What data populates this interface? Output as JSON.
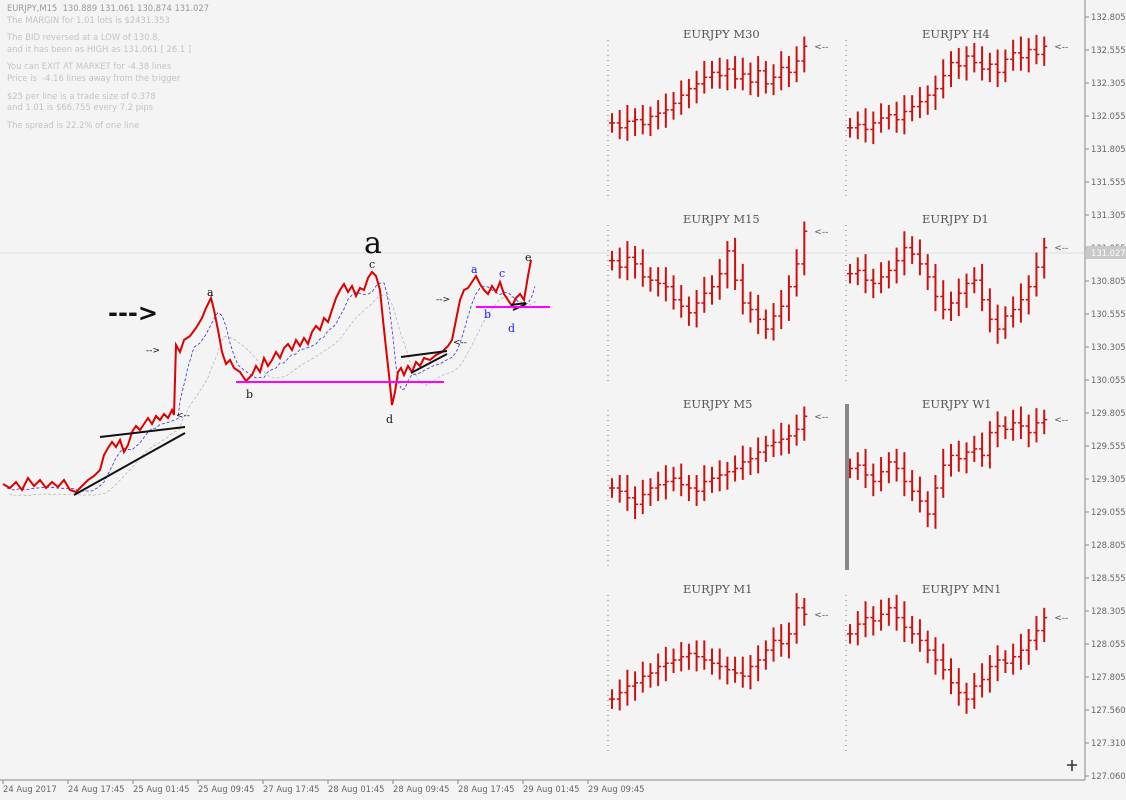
{
  "header": {
    "symbol_line": "EURJPY,M15  130.889 131.061 130.874 131.027",
    "info_lines": [
      "The MARGIN for 1.01 lots is $2431.353",
      "",
      "The BID reversed at a LOW of 130.8,",
      "and it has been as HIGH as 131.061 [ 26.1 ]",
      "",
      "You can EXIT AT MARKET for -4.38 lines",
      "Price is  -4.16 lines away from the trigger",
      "",
      "$25 per line is a trade size of 0.378",
      "and 1.01 is $66.755 every 7.2 pips",
      "",
      "The spread is 22.2% of one line"
    ]
  },
  "annotations": {
    "big_label": "a",
    "arrow_text": "--->",
    "wave_labels_black": [
      "a",
      "b",
      "c",
      "d",
      "e"
    ],
    "wave_labels_blue": [
      "a",
      "b",
      "c",
      "d"
    ]
  },
  "colors": {
    "price_line": "#dd0000",
    "support_line": "#ff00ff",
    "ma_line": "#3333cc",
    "panel_bars": "#cc1111",
    "axis_text": "#666666",
    "current_price_bg": "#c8c8c8"
  },
  "chart_data": [
    {
      "type": "line",
      "title": "EURJPY,M15",
      "x_tick_labels": [
        "24 Aug 2017",
        "24 Aug 17:45",
        "25 Aug 01:45",
        "25 Aug 09:45",
        "27 Aug 17:45",
        "28 Aug 01:45",
        "28 Aug 09:45",
        "28 Aug 17:45",
        "29 Aug 01:45",
        "29 Aug 09:45"
      ],
      "y_tick_labels": [
        "132.805",
        "132.555",
        "132.305",
        "132.055",
        "131.805",
        "131.555",
        "131.305",
        "131.055",
        "130.805",
        "130.555",
        "130.305",
        "130.055",
        "129.805",
        "129.555",
        "129.305",
        "129.055",
        "128.805",
        "128.555",
        "128.305",
        "128.055",
        "127.805",
        "127.560",
        "127.310",
        "127.060"
      ],
      "current_price": "131.027",
      "ylim": [
        127.06,
        132.805
      ]
    },
    {
      "type": "bar",
      "note": "OHLC mini panels of EURJPY on multiple timeframes",
      "panels": [
        {
          "title": "EURJPY M30",
          "closes": [
            43,
            40,
            44,
            45,
            42,
            47,
            49,
            51,
            55,
            60,
            64,
            67,
            71,
            74,
            72,
            76,
            70,
            73,
            68,
            75,
            67,
            71,
            77,
            74,
            81,
            90
          ]
        },
        {
          "title": "EURJPY H4",
          "closes": [
            40,
            42,
            39,
            43,
            46,
            48,
            45,
            50,
            53,
            56,
            60,
            64,
            72,
            80,
            78,
            84,
            80,
            76,
            79,
            74,
            82,
            86,
            83,
            88,
            85,
            90
          ]
        },
        {
          "title": "EURJPY M15",
          "closes": [
            72,
            68,
            74,
            70,
            62,
            60,
            58,
            56,
            48,
            44,
            40,
            46,
            52,
            56,
            64,
            78,
            60,
            46,
            42,
            36,
            30,
            38,
            44,
            56,
            70,
            90
          ]
        },
        {
          "title": "EURJPY D1",
          "closes": [
            64,
            66,
            60,
            58,
            62,
            66,
            72,
            80,
            76,
            70,
            62,
            50,
            42,
            46,
            52,
            58,
            60,
            48,
            36,
            30,
            38,
            42,
            48,
            56,
            68,
            80
          ]
        },
        {
          "title": "EURJPY M5",
          "closes": [
            46,
            44,
            40,
            36,
            42,
            46,
            48,
            50,
            52,
            48,
            46,
            44,
            50,
            52,
            54,
            56,
            58,
            62,
            64,
            68,
            72,
            74,
            76,
            78,
            82,
            90
          ]
        },
        {
          "title": "EURJPY W1",
          "closes": [
            58,
            60,
            54,
            50,
            56,
            62,
            58,
            50,
            44,
            38,
            30,
            46,
            60,
            66,
            64,
            68,
            70,
            66,
            80,
            84,
            82,
            86,
            84,
            80,
            86,
            88
          ]
        },
        {
          "title": "EURJPY M1",
          "closes": [
            30,
            34,
            38,
            40,
            44,
            46,
            50,
            52,
            54,
            56,
            58,
            56,
            54,
            52,
            50,
            48,
            46,
            44,
            50,
            54,
            60,
            66,
            64,
            70,
            86,
            82
          ]
        },
        {
          "title": "EURJPY MN1",
          "closes": [
            70,
            76,
            80,
            78,
            82,
            86,
            80,
            74,
            70,
            66,
            60,
            54,
            48,
            40,
            34,
            30,
            38,
            42,
            50,
            54,
            52,
            56,
            60,
            66,
            72,
            80
          ]
        }
      ]
    }
  ]
}
